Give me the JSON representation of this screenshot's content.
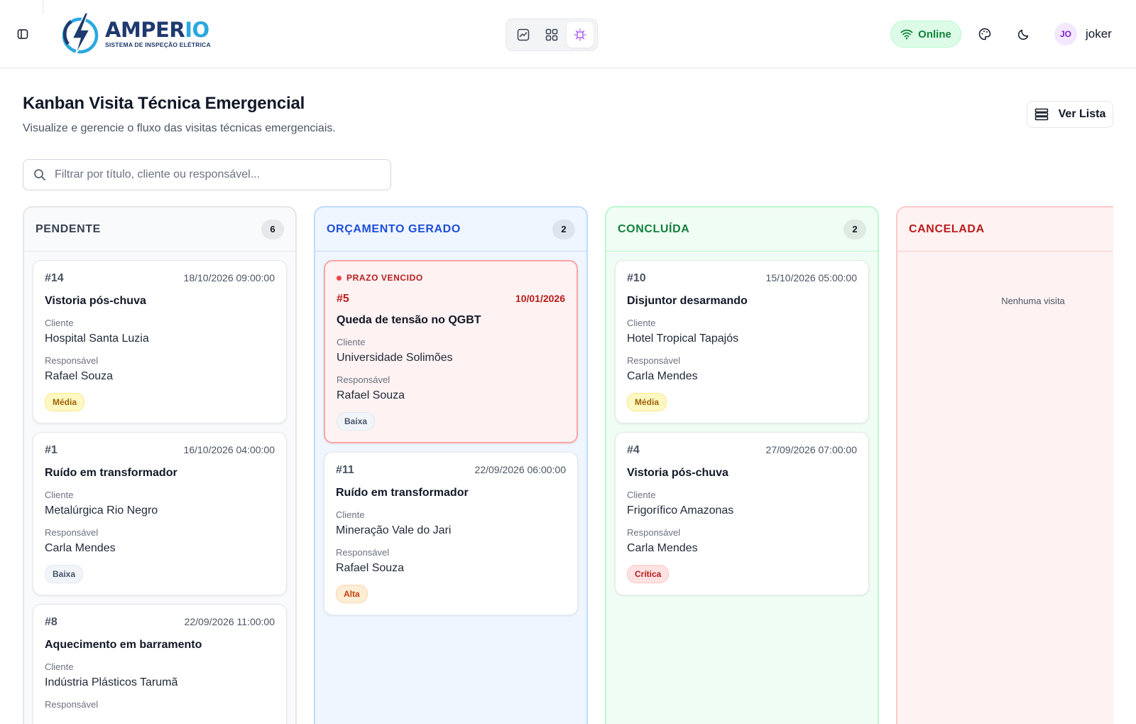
{
  "header": {
    "brand_name": "AMPER",
    "brand_suffix": "IO",
    "brand_tagline": "SISTEMA DE INSPEÇÃO ELÉTRICA",
    "status": "Online",
    "avatar_initials": "JO",
    "username": "joker",
    "view_buttons": [
      "chart-icon",
      "grid-icon",
      "kanban-icon"
    ],
    "active_view": "kanban-icon"
  },
  "page": {
    "title": "Kanban Visita Técnica Emergencial",
    "subtitle": "Visualize e gerencie o fluxo das visitas técnicas emergenciais.",
    "list_button": "Ver Lista"
  },
  "search": {
    "placeholder": "Filtrar por título, cliente ou responsável..."
  },
  "labels": {
    "client": "Cliente",
    "responsible": "Responsável",
    "overdue": "PRAZO VENCIDO"
  },
  "columns": [
    {
      "title": "PENDENTE",
      "count": "6",
      "color": "#374151",
      "bg": "#f9fafb",
      "border": "#e5e7eb",
      "cards": [
        {
          "num": "#14",
          "date": "18/10/2026 09:00:00",
          "title": "Vistoria pós-chuva",
          "client": "Hospital Santa Luzia",
          "responsible": "Rafael Souza",
          "priority": "Média"
        },
        {
          "num": "#1",
          "date": "16/10/2026 04:00:00",
          "title": "Ruído em transformador",
          "client": "Metalúrgica Rio Negro",
          "responsible": "Carla Mendes",
          "priority": "Baixa"
        },
        {
          "num": "#8",
          "date": "22/09/2026 11:00:00",
          "title": "Aquecimento em barramento",
          "client": "Indústria Plásticos Tarumã",
          "responsible": "",
          "priority": ""
        }
      ]
    },
    {
      "title": "ORÇAMENTO GERADO",
      "count": "2",
      "color": "#1d4ed8",
      "bg": "#eff6ff",
      "border": "#bfdbfe",
      "cards": [
        {
          "num": "#5",
          "date": "10/01/2026",
          "title": "Queda de tensão no QGBT",
          "client": "Universidade Solimões",
          "responsible": "Rafael Souza",
          "priority": "Baixa",
          "overdue": true
        },
        {
          "num": "#11",
          "date": "22/09/2026 06:00:00",
          "title": "Ruído em transformador",
          "client": "Mineração Vale do Jari",
          "responsible": "Rafael Souza",
          "priority": "Alta"
        }
      ]
    },
    {
      "title": "CONCLUÍDA",
      "count": "2",
      "color": "#15803d",
      "bg": "#f0fdf4",
      "border": "#bbf7d0",
      "cards": [
        {
          "num": "#10",
          "date": "15/10/2026 05:00:00",
          "title": "Disjuntor desarmando",
          "client": "Hotel Tropical Tapajós",
          "responsible": "Carla Mendes",
          "priority": "Média"
        },
        {
          "num": "#4",
          "date": "27/09/2026 07:00:00",
          "title": "Vistoria pós-chuva",
          "client": "Frigorífico Amazonas",
          "responsible": "Carla Mendes",
          "priority": "Crítica"
        }
      ]
    },
    {
      "title": "CANCELADA",
      "count": "",
      "color": "#b91c1c",
      "bg": "#fef2f2",
      "border": "#fecaca",
      "empty": "Nenhuma visita",
      "cards": []
    }
  ],
  "priority_colors": {
    "Média": {
      "bg": "#fef9c3",
      "border": "#fde68a",
      "color": "#a16207"
    },
    "Baixa": {
      "bg": "#f1f5f9",
      "border": "#e2e8f0",
      "color": "#475569"
    },
    "Alta": {
      "bg": "#ffedd5",
      "border": "#fed7aa",
      "color": "#c2410c"
    },
    "Crítica": {
      "bg": "#fee2e2",
      "border": "#fecaca",
      "color": "#b91c1c"
    }
  }
}
